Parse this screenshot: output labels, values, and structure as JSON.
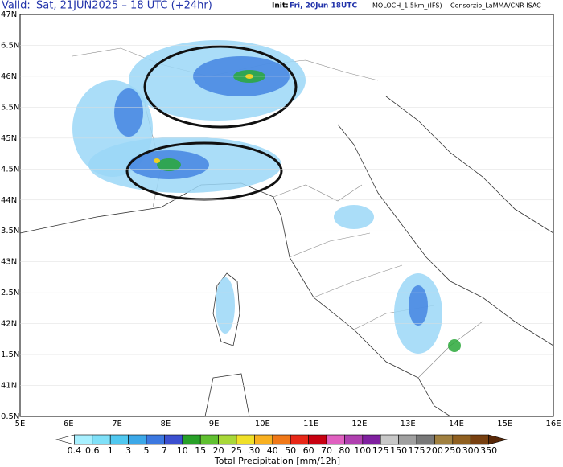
{
  "header": {
    "valid_label": "Valid:",
    "valid": "Sat, 21JUN2025 – 18 UTC (+24hr)",
    "init_label": "Init:",
    "init": "Fri, 20Jun 18UTC",
    "model": "MOLOCH_1.5km_(IFS)",
    "source": "Consorzio_LaMMA/CNR-ISAC"
  },
  "lat_labels": [
    "47N",
    "6.5N",
    "46N",
    "5.5N",
    "45N",
    "4.5N",
    "44N",
    "3.5N",
    "43N",
    "2.5N",
    "42N",
    "1.5N",
    "41N",
    "0.5N"
  ],
  "lon_labels": [
    "5E",
    "6E",
    "7E",
    "8E",
    "9E",
    "10E",
    "11E",
    "12E",
    "13E",
    "14E",
    "15E",
    "16E"
  ],
  "colorbar": {
    "title": "Total Precipitation [mm/12h]",
    "levels": [
      "0.4",
      "0.6",
      "1",
      "3",
      "5",
      "7",
      "10",
      "15",
      "20",
      "25",
      "30",
      "40",
      "50",
      "60",
      "70",
      "80",
      "100",
      "125",
      "150",
      "175",
      "200",
      "250",
      "300",
      "350"
    ],
    "colors": [
      "#ffffff",
      "#a8f0ff",
      "#7fe0f8",
      "#50c8f0",
      "#3ca8e8",
      "#3c78e0",
      "#3c50d0",
      "#28a028",
      "#60c030",
      "#a8d838",
      "#f0e028",
      "#f8b020",
      "#f07818",
      "#e82818",
      "#c80010",
      "#e060c0",
      "#b040b0",
      "#8020a0",
      "#c8c8c8",
      "#a0a0a0",
      "#787878",
      "#a08040",
      "#906020",
      "#784010",
      "#582808"
    ]
  }
}
